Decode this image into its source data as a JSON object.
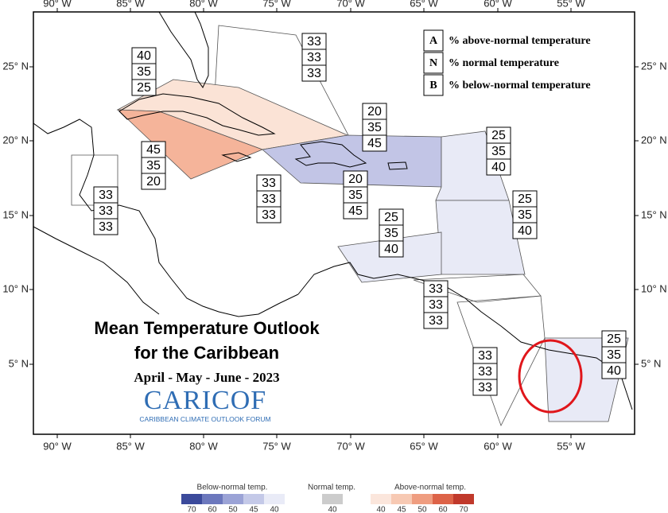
{
  "map": {
    "title_lines": [
      "Mean Temperature Outlook",
      "for the Caribbean"
    ],
    "subtitle": "April - May - June - 2023",
    "logo": "CARICOF",
    "logo_tagline": "CARIBBEAN CLIMATE OUTLOOK FORUM",
    "longitude_labels": [
      "90° W",
      "85° W",
      "80° W",
      "75° W",
      "70° W",
      "65° W",
      "60° W",
      "55° W"
    ],
    "latitude_labels": [
      "25° N",
      "20° N",
      "15° N",
      "10° N",
      "5° N"
    ],
    "key": [
      {
        "letter": "A",
        "text": "% above-normal temperature"
      },
      {
        "letter": "N",
        "text": "% normal temperature"
      },
      {
        "letter": "B",
        "text": "% below-normal temperature"
      }
    ],
    "zones": [
      {
        "values": [
          33,
          33,
          33
        ]
      },
      {
        "values": [
          40,
          35,
          25
        ]
      },
      {
        "values": [
          45,
          35,
          20
        ]
      },
      {
        "values": [
          20,
          35,
          45
        ]
      },
      {
        "values": [
          20,
          35,
          45
        ]
      },
      {
        "values": [
          25,
          35,
          40
        ]
      },
      {
        "values": [
          25,
          35,
          40
        ]
      },
      {
        "values": [
          25,
          35,
          40
        ]
      },
      {
        "values": [
          33,
          33,
          33
        ]
      },
      {
        "values": [
          33,
          33,
          33
        ]
      },
      {
        "values": [
          33,
          33,
          33
        ]
      },
      {
        "values": [
          33,
          33,
          33
        ]
      },
      {
        "values": [
          25,
          35,
          40
        ]
      }
    ]
  },
  "color_legend": {
    "below": {
      "title": "Below-normal temp.",
      "labels": [
        70,
        60,
        50,
        45,
        40
      ]
    },
    "normal": {
      "title": "Normal temp.",
      "labels": [
        40
      ]
    },
    "above": {
      "title": "Above-normal temp.",
      "labels": [
        40,
        45,
        50,
        60,
        70
      ]
    }
  }
}
